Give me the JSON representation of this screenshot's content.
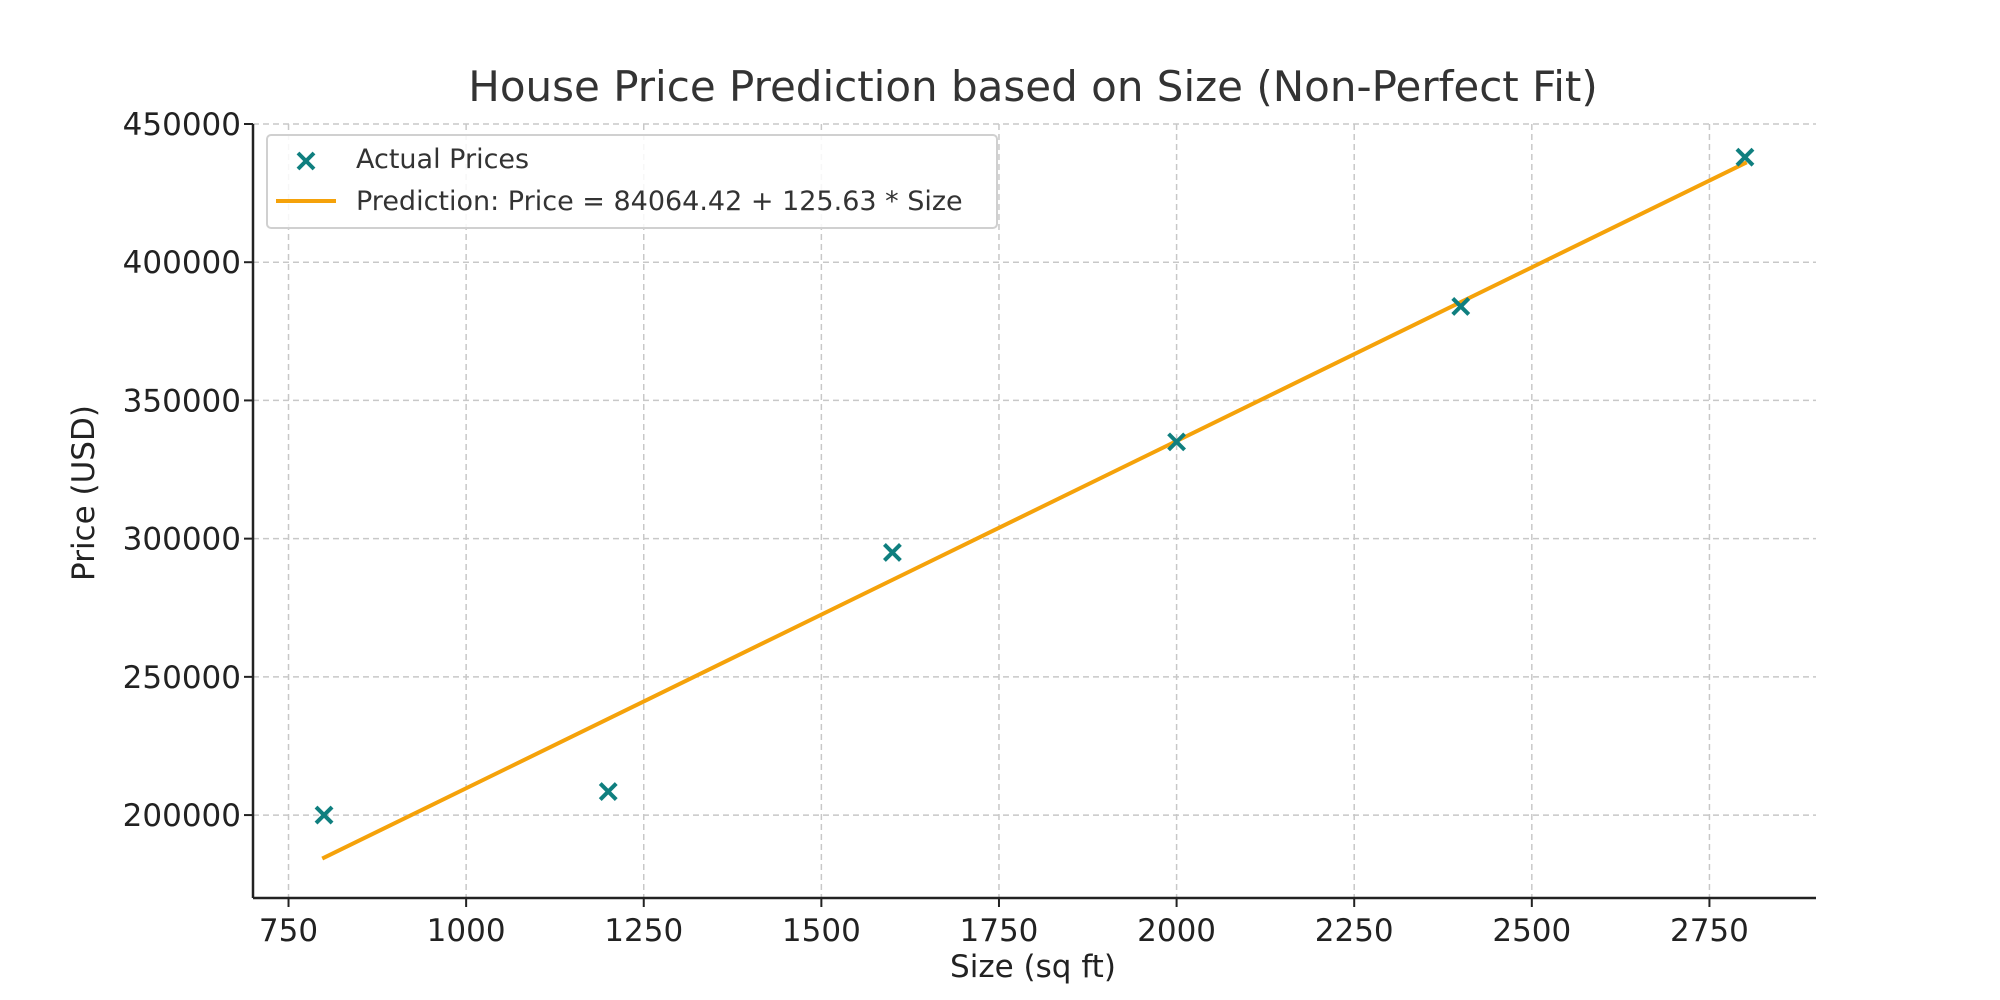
{
  "chart_data": {
    "type": "scatter",
    "title": "House Price Prediction based on Size (Non-Perfect Fit)",
    "xlabel": "Size (sq ft)",
    "ylabel": "Price (USD)",
    "xlim": [
      700,
      2900
    ],
    "ylim": [
      170000,
      450000
    ],
    "x_ticks": [
      750,
      1000,
      1250,
      1500,
      1750,
      2000,
      2250,
      2500,
      2750
    ],
    "y_ticks": [
      200000,
      250000,
      300000,
      350000,
      400000,
      450000
    ],
    "grid": true,
    "legend_position": "top-left",
    "series": [
      {
        "name": "Actual Prices",
        "type": "scatter",
        "marker": "x",
        "color": "#0f7f7f",
        "x": [
          800,
          1200,
          1600,
          2000,
          2400,
          2800
        ],
        "y": [
          200000,
          208500,
          295000,
          335000,
          384000,
          438000
        ]
      },
      {
        "name": "Prediction: Price = 84064.42 + 125.63 * Size",
        "type": "line",
        "color": "#f5a20a",
        "intercept": 84064.42,
        "slope": 125.63,
        "x": [
          800,
          2800
        ]
      }
    ]
  }
}
